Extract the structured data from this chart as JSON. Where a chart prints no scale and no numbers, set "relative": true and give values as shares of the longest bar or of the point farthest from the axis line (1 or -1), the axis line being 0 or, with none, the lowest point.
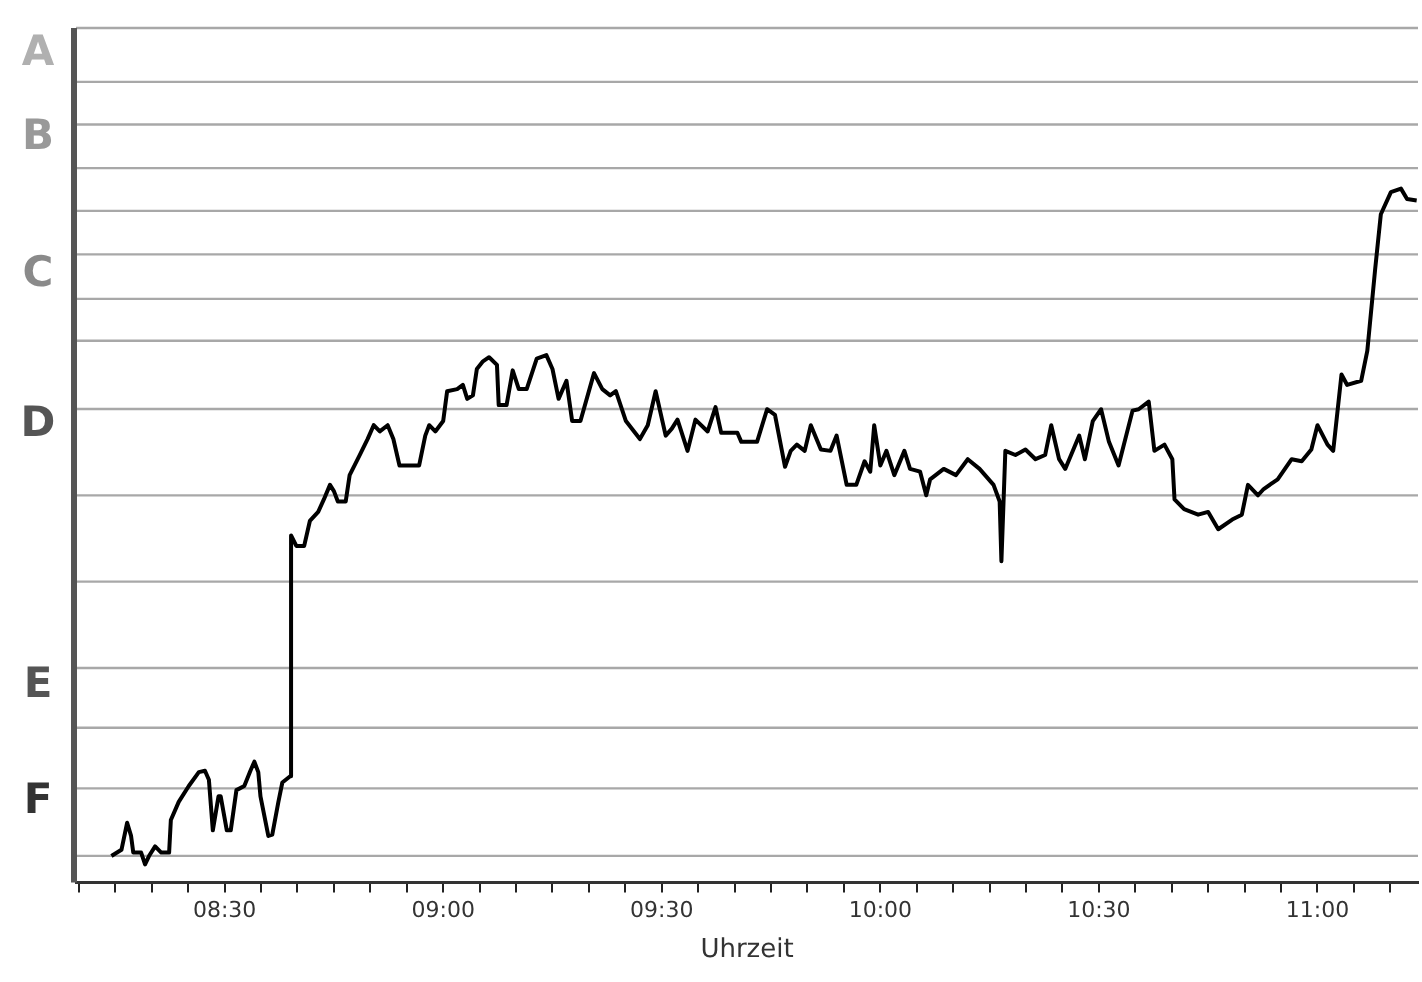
{
  "chart_data": {
    "type": "line",
    "xlabel": "Uhrzeit",
    "color": "#000000",
    "grid": "y",
    "legend": false,
    "marker": "none",
    "line_style": "solid",
    "relative": true,
    "annotations": [
      "A",
      "B",
      "C",
      "D",
      "E",
      "F"
    ],
    "xlim": [
      8.16,
      11.23
    ],
    "xticks": [
      {
        "value": 8.1667,
        "label": null
      },
      {
        "value": 8.25,
        "label": null
      },
      {
        "value": 8.3333,
        "label": null
      },
      {
        "value": 8.4167,
        "label": null
      },
      {
        "value": 8.5,
        "label": "08:30"
      },
      {
        "value": 8.5833,
        "label": null
      },
      {
        "value": 8.6667,
        "label": null
      },
      {
        "value": 8.75,
        "label": null
      },
      {
        "value": 8.8333,
        "label": null
      },
      {
        "value": 8.9167,
        "label": null
      },
      {
        "value": 9,
        "label": "09:00"
      },
      {
        "value": 9.0833,
        "label": null
      },
      {
        "value": 9.1667,
        "label": null
      },
      {
        "value": 9.25,
        "label": null
      },
      {
        "value": 9.3333,
        "label": null
      },
      {
        "value": 9.4167,
        "label": null
      },
      {
        "value": 9.5,
        "label": "09:30"
      },
      {
        "value": 9.5833,
        "label": null
      },
      {
        "value": 9.6667,
        "label": null
      },
      {
        "value": 9.75,
        "label": null
      },
      {
        "value": 9.8333,
        "label": null
      },
      {
        "value": 9.9167,
        "label": null
      },
      {
        "value": 10,
        "label": "10:00"
      },
      {
        "value": 10.0833,
        "label": null
      },
      {
        "value": 10.1667,
        "label": null
      },
      {
        "value": 10.25,
        "label": null
      },
      {
        "value": 10.3333,
        "label": null
      },
      {
        "value": 10.4167,
        "label": null
      },
      {
        "value": 10.5,
        "label": "10:30"
      },
      {
        "value": 10.5833,
        "label": null
      },
      {
        "value": 10.6667,
        "label": null
      },
      {
        "value": 10.75,
        "label": null
      },
      {
        "value": 10.8333,
        "label": null
      },
      {
        "value": 10.9167,
        "label": null
      },
      {
        "value": 11,
        "label": "11:00"
      },
      {
        "value": 11.0833,
        "label": null
      },
      {
        "value": 11.1667,
        "label": null
      }
    ],
    "x": [
      8.241,
      8.264,
      8.277,
      8.286,
      8.291,
      8.309,
      8.318,
      8.327,
      8.341,
      8.355,
      8.373,
      8.377,
      8.395,
      8.418,
      8.441,
      8.455,
      8.464,
      8.473,
      8.486,
      8.491,
      8.505,
      8.514,
      8.527,
      8.545,
      8.559,
      8.568,
      8.577,
      8.582,
      8.6,
      8.609,
      8.623,
      8.632,
      8.65,
      8.652,
      8.664,
      8.682,
      8.695,
      8.714,
      8.727,
      8.741,
      8.75,
      8.759,
      8.777,
      8.786,
      8.809,
      8.827,
      8.841,
      8.855,
      8.873,
      8.886,
      8.9,
      8.945,
      8.959,
      8.968,
      8.982,
      9.0,
      9.009,
      9.032,
      9.045,
      9.055,
      9.068,
      9.077,
      9.091,
      9.105,
      9.123,
      9.127,
      9.145,
      9.159,
      9.173,
      9.191,
      9.214,
      9.236,
      9.25,
      9.264,
      9.282,
      9.295,
      9.314,
      9.345,
      9.364,
      9.382,
      9.395,
      9.418,
      9.45,
      9.468,
      9.486,
      9.509,
      9.523,
      9.536,
      9.559,
      9.577,
      9.605,
      9.623,
      9.636,
      9.673,
      9.682,
      9.718,
      9.741,
      9.759,
      9.782,
      9.795,
      9.809,
      9.827,
      9.841,
      9.864,
      9.886,
      9.9,
      9.923,
      9.945,
      9.964,
      9.977,
      9.986,
      10.0,
      10.014,
      10.032,
      10.055,
      10.068,
      10.091,
      10.105,
      10.114,
      10.145,
      10.173,
      10.2,
      10.227,
      10.259,
      10.273,
      10.277,
      10.286,
      10.309,
      10.332,
      10.355,
      10.377,
      10.391,
      10.409,
      10.423,
      10.455,
      10.468,
      10.486,
      10.505,
      10.523,
      10.545,
      10.577,
      10.591,
      10.614,
      10.627,
      10.65,
      10.668,
      10.673,
      10.695,
      10.727,
      10.75,
      10.773,
      10.805,
      10.827,
      10.841,
      10.864,
      10.877,
      10.909,
      10.941,
      10.964,
      10.986,
      11.0,
      11.023,
      11.036,
      11.055,
      11.068,
      11.1,
      11.114,
      11.132,
      11.145,
      11.168,
      11.191,
      11.205,
      11.227
    ],
    "values": [
      0.038,
      0.047,
      0.086,
      0.067,
      0.043,
      0.043,
      0.026,
      0.038,
      0.052,
      0.043,
      0.043,
      0.09,
      0.116,
      0.139,
      0.159,
      0.161,
      0.148,
      0.075,
      0.124,
      0.124,
      0.075,
      0.075,
      0.133,
      0.139,
      0.161,
      0.174,
      0.159,
      0.124,
      0.067,
      0.069,
      0.116,
      0.144,
      0.153,
      0.5,
      0.485,
      0.485,
      0.521,
      0.534,
      0.552,
      0.573,
      0.564,
      0.549,
      0.549,
      0.587,
      0.616,
      0.639,
      0.659,
      0.65,
      0.659,
      0.639,
      0.601,
      0.601,
      0.644,
      0.659,
      0.65,
      0.665,
      0.708,
      0.711,
      0.717,
      0.697,
      0.702,
      0.74,
      0.751,
      0.757,
      0.746,
      0.688,
      0.688,
      0.738,
      0.711,
      0.711,
      0.755,
      0.76,
      0.74,
      0.697,
      0.723,
      0.665,
      0.665,
      0.734,
      0.711,
      0.702,
      0.708,
      0.665,
      0.639,
      0.659,
      0.708,
      0.644,
      0.654,
      0.667,
      0.622,
      0.667,
      0.65,
      0.685,
      0.648,
      0.648,
      0.635,
      0.635,
      0.682,
      0.674,
      0.599,
      0.622,
      0.631,
      0.622,
      0.659,
      0.624,
      0.622,
      0.644,
      0.573,
      0.573,
      0.607,
      0.592,
      0.659,
      0.601,
      0.622,
      0.587,
      0.622,
      0.596,
      0.592,
      0.558,
      0.581,
      0.596,
      0.587,
      0.61,
      0.596,
      0.573,
      0.549,
      0.463,
      0.622,
      0.616,
      0.624,
      0.61,
      0.616,
      0.659,
      0.61,
      0.596,
      0.644,
      0.61,
      0.665,
      0.682,
      0.635,
      0.601,
      0.68,
      0.682,
      0.693,
      0.622,
      0.631,
      0.61,
      0.552,
      0.538,
      0.53,
      0.534,
      0.509,
      0.523,
      0.53,
      0.573,
      0.558,
      0.567,
      0.581,
      0.61,
      0.607,
      0.624,
      0.659,
      0.631,
      0.622,
      0.732,
      0.717,
      0.723,
      0.766,
      0.884,
      0.963,
      0.995,
      1,
      0.985,
      0.983
    ]
  }
}
